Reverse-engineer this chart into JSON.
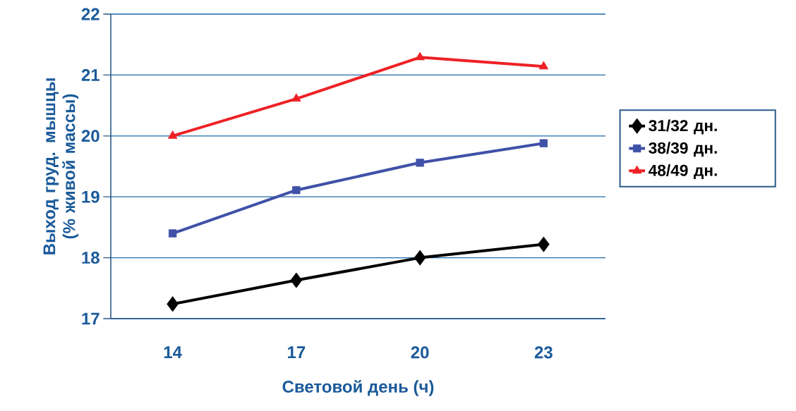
{
  "chart_data": {
    "type": "line",
    "xlabel": "Световой день (ч)",
    "ylabel": "Выход груд. мышцы (% живой массы)",
    "categories": [
      "14",
      "17",
      "20",
      "23"
    ],
    "series": [
      {
        "name": "31/32 дн.",
        "color": "#000000",
        "marker": "diamond",
        "values": [
          17.24,
          17.63,
          18.0,
          18.22
        ]
      },
      {
        "name": "38/39 дн.",
        "color": "#3f51a8",
        "marker": "square",
        "values": [
          18.4,
          19.11,
          19.56,
          19.88
        ]
      },
      {
        "name": "48/49 дн.",
        "color": "#ee2124",
        "marker": "triangle",
        "values": [
          20.0,
          20.61,
          21.29,
          21.14
        ]
      }
    ],
    "ylim": [
      17,
      22
    ],
    "yticks": [
      17,
      18,
      19,
      20,
      21,
      22
    ],
    "grid": "y",
    "legend": "right",
    "line_style": "solid"
  }
}
